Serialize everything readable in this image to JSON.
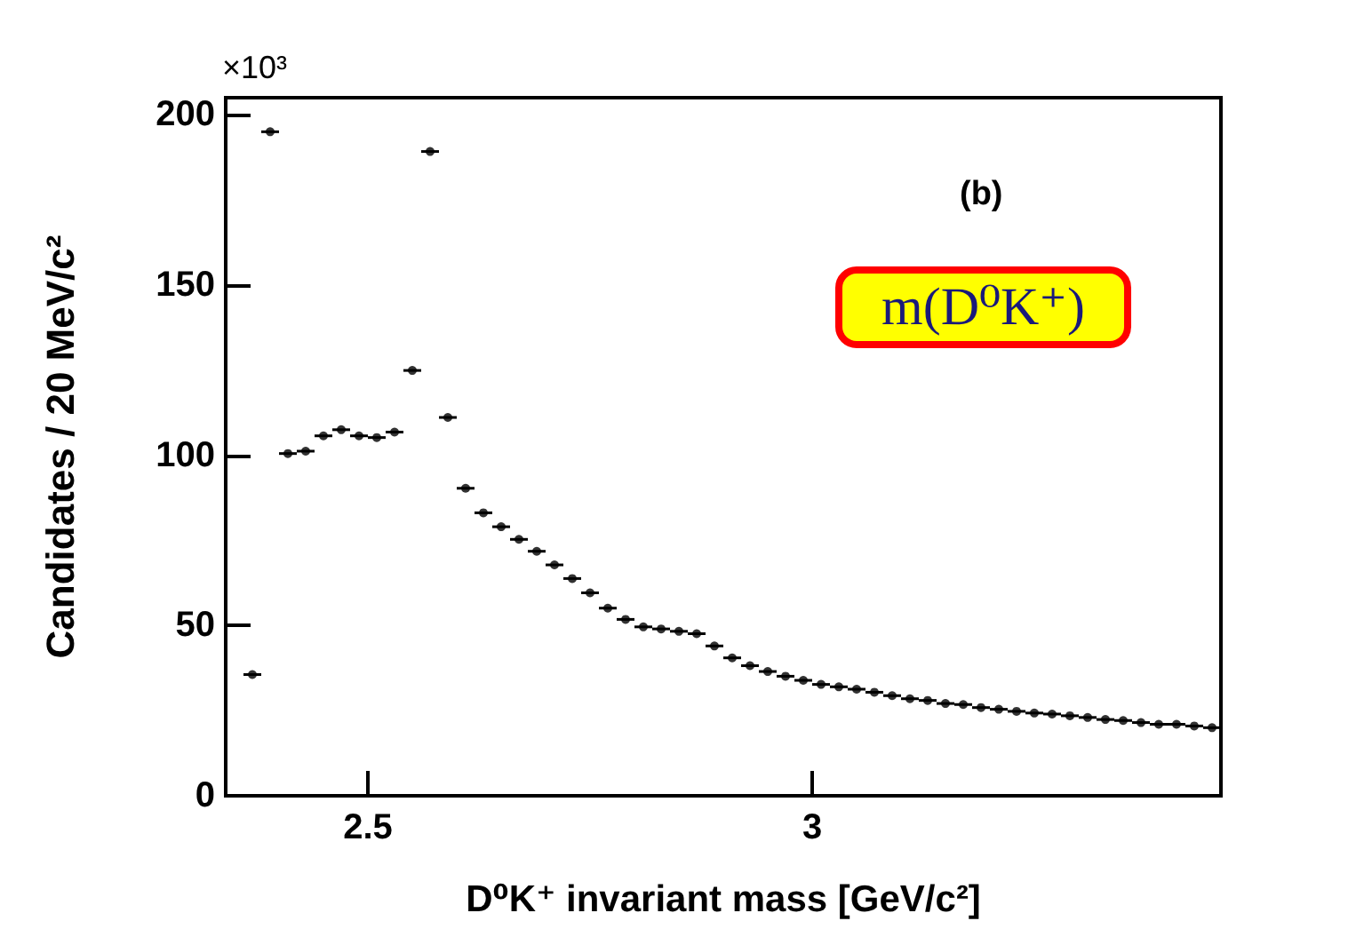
{
  "chart_data": {
    "type": "scatter",
    "xlabel": "D⁰K⁺ invariant mass [GeV/c²]",
    "ylabel": "Candidates / 20 MeV/c²",
    "annotations": [
      "×10³",
      "(b)",
      "m(D⁰K⁺)"
    ],
    "x": [
      2.37,
      2.39,
      2.41,
      2.43,
      2.45,
      2.47,
      2.49,
      2.51,
      2.53,
      2.55,
      2.57,
      2.59,
      2.61,
      2.63,
      2.65,
      2.67,
      2.69,
      2.71,
      2.73,
      2.75,
      2.77,
      2.79,
      2.81,
      2.83,
      2.85,
      2.87,
      2.89,
      2.91,
      2.93,
      2.95,
      2.97,
      2.99,
      3.01,
      3.03,
      3.05,
      3.07,
      3.09,
      3.11,
      3.13,
      3.15,
      3.17,
      3.19,
      3.21,
      3.23,
      3.25,
      3.27,
      3.29,
      3.31,
      3.33,
      3.35,
      3.37,
      3.39,
      3.41,
      3.43,
      3.45
    ],
    "values": [
      35.6,
      195,
      100.5,
      101.2,
      105.7,
      107.5,
      105.7,
      105.2,
      106.8,
      124.9,
      189.2,
      111.1,
      90.3,
      83.1,
      79.0,
      75.3,
      71.8,
      67.8,
      63.8,
      59.6,
      55.1,
      51.8,
      49.6,
      49.0,
      48.3,
      47.6,
      44.0,
      40.5,
      38.2,
      36.5,
      35.1,
      33.9,
      32.7,
      32.0,
      31.3,
      30.4,
      29.4,
      28.5,
      28.0,
      27.1,
      26.8,
      25.9,
      25.4,
      24.8,
      24.3,
      24.0,
      23.5,
      23.0,
      22.4,
      22.1,
      21.5,
      21.0,
      21.0,
      20.5,
      20.0
    ],
    "xerrors": [
      0.01,
      0.01,
      0.01,
      0.01,
      0.01,
      0.01,
      0.01,
      0.01,
      0.01,
      0.01,
      0.01,
      0.01,
      0.01,
      0.01,
      0.01,
      0.01,
      0.01,
      0.01,
      0.01,
      0.01,
      0.01,
      0.01,
      0.01,
      0.01,
      0.01,
      0.01,
      0.01,
      0.01,
      0.01,
      0.01,
      0.01,
      0.01,
      0.01,
      0.01,
      0.01,
      0.01,
      0.01,
      0.01,
      0.01,
      0.01,
      0.01,
      0.01,
      0.01,
      0.01,
      0.01,
      0.01,
      0.01,
      0.01,
      0.01,
      0.01,
      0.01,
      0.01,
      0.01,
      0.01,
      0.01
    ],
    "color": "#000000",
    "marker": "circle",
    "xlim": [
      2.34,
      3.46
    ],
    "xticks": [
      {
        "value": 2.5,
        "label": "2.5"
      },
      {
        "value": 3.0,
        "label": "3"
      }
    ],
    "ylim": [
      0,
      205
    ],
    "yticks": [
      0,
      50,
      100,
      150,
      200
    ]
  }
}
